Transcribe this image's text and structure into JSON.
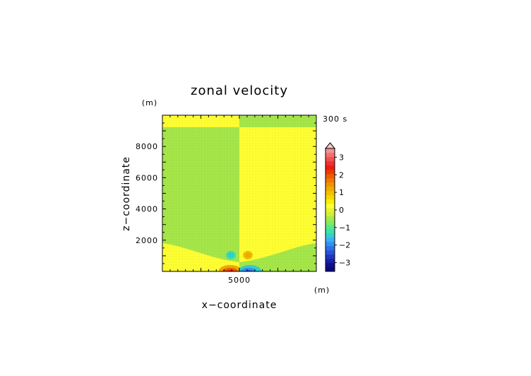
{
  "chart_data": {
    "type": "heatmap",
    "title": "zonal velocity",
    "time_label": "300 s",
    "xlabel": "x−coordinate",
    "ylabel": "z−coordinate",
    "xunit": "(m)",
    "yunit": "(m)",
    "xlim": [
      0,
      10000
    ],
    "ylim": [
      0,
      10000
    ],
    "xticks": [
      {
        "value": 5000,
        "label": "5000"
      }
    ],
    "yticks": [
      {
        "value": 2000,
        "label": "2000"
      },
      {
        "value": 4000,
        "label": "4000"
      },
      {
        "value": 6000,
        "label": "6000"
      },
      {
        "value": 8000,
        "label": "8000"
      }
    ],
    "colorbar": {
      "min": -3.5,
      "max": 3.5,
      "step": 0.25,
      "extend": "max",
      "labels": [
        {
          "value": 3,
          "label": "3"
        },
        {
          "value": 2,
          "label": "2"
        },
        {
          "value": 1,
          "label": "1"
        },
        {
          "value": 0,
          "label": "0"
        },
        {
          "value": -1,
          "label": "−1"
        },
        {
          "value": -2,
          "label": "−2"
        },
        {
          "value": -3,
          "label": "−3"
        }
      ],
      "colors": [
        "#0a0a7a",
        "#10108f",
        "#1820a8",
        "#1f36c2",
        "#2a52d9",
        "#2f6fe6",
        "#3490f0",
        "#3bb0f5",
        "#33d0cc",
        "#40e0a8",
        "#55e890",
        "#80ec60",
        "#a6e84a",
        "#cdf03c",
        "#e7f42e",
        "#ffff33",
        "#f7f000",
        "#f4d800",
        "#f2c200",
        "#f0ab00",
        "#ef9400",
        "#f07800",
        "#ef5c00",
        "#ee3a00",
        "#ee1c10",
        "#f03030",
        "#f25050",
        "#f47070",
        "#f69090"
      ]
    },
    "regions": [
      {
        "name": "upper-left",
        "value": 0.1,
        "color": "#a6e84a"
      },
      {
        "name": "upper-right",
        "value": -0.1,
        "color": "#ffff33"
      },
      {
        "name": "top-strip-left",
        "value": -0.1,
        "color": "#ffff33"
      },
      {
        "name": "top-strip-right",
        "value": 0.1,
        "color": "#a6e84a"
      }
    ],
    "features": [
      {
        "name": "cyan-blob",
        "x": 4300,
        "z": 1100,
        "value": -0.8
      },
      {
        "name": "orange-blob",
        "x": 5500,
        "z": 1100,
        "value": 0.8
      },
      {
        "name": "red-blob",
        "x": 4300,
        "z": 80,
        "value": 2.0
      },
      {
        "name": "blue-blob",
        "x": 5500,
        "z": 80,
        "value": -2.0
      }
    ]
  }
}
